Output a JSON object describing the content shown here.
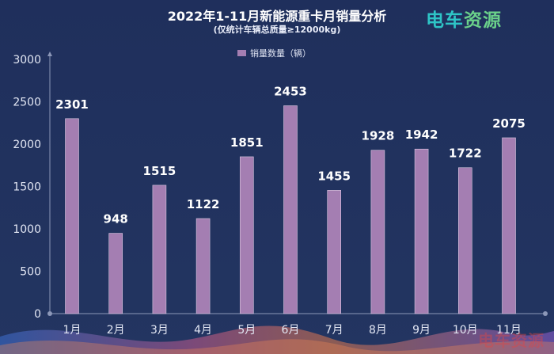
{
  "title": "2022年1-11月新能源重卡月销量分析",
  "subtitle": "(仅统计车辆总质量≥12000kg)",
  "brand_logo": {
    "text_a": "电车",
    "text_b": "资源"
  },
  "watermark": "电车资源",
  "colors": {
    "background": "#1f2f5c",
    "bar": "#a47eb2",
    "label": "#ffffff",
    "axis": "#8c97b8"
  },
  "chart_data": {
    "type": "bar",
    "categories": [
      "1月",
      "2月",
      "3月",
      "4月",
      "5月",
      "6月",
      "7月",
      "8月",
      "9月",
      "10月",
      "11月"
    ],
    "series": [
      {
        "name": "销量数量（辆）",
        "values": [
          2301,
          948,
          1515,
          1122,
          1851,
          2453,
          1455,
          1928,
          1942,
          1722,
          2075
        ]
      }
    ],
    "ylim": [
      0,
      3000
    ],
    "yticks": [
      0,
      500,
      1000,
      1500,
      2000,
      2500,
      3000
    ],
    "data_labels": true,
    "legend_position": "top-center",
    "grid": false
  }
}
